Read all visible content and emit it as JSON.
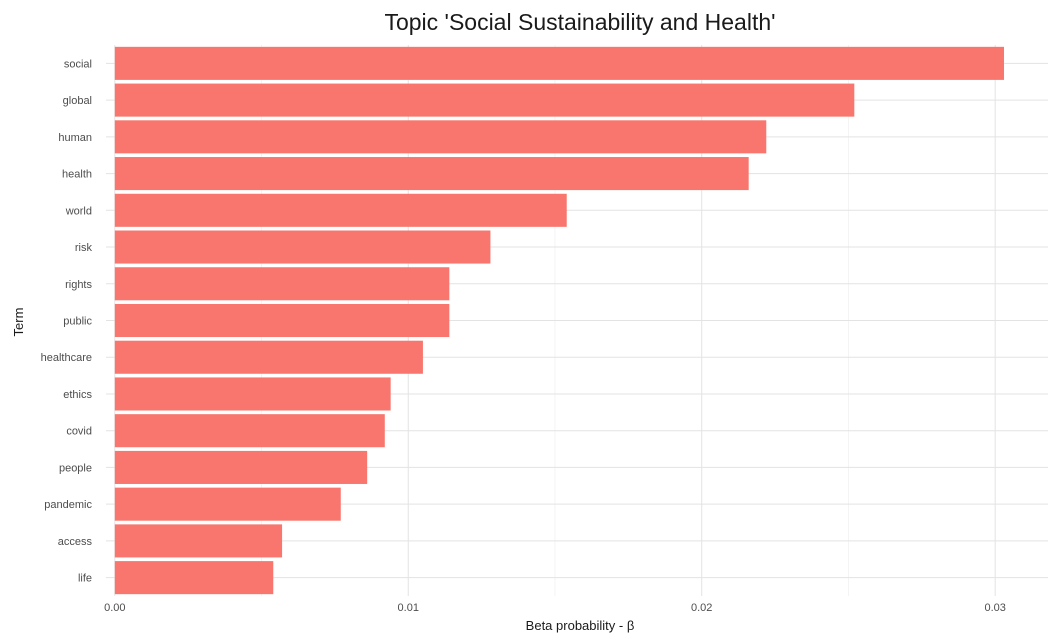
{
  "chart_data": {
    "type": "bar",
    "orientation": "horizontal",
    "title": "Topic 'Social Sustainability and Health'",
    "xlabel": "Beta probability - β",
    "ylabel": "Term",
    "categories": [
      "social",
      "global",
      "human",
      "health",
      "world",
      "risk",
      "rights",
      "public",
      "healthcare",
      "ethics",
      "covid",
      "people",
      "pandemic",
      "access",
      "life"
    ],
    "values": [
      0.0303,
      0.0252,
      0.0222,
      0.0216,
      0.0154,
      0.0128,
      0.0114,
      0.0114,
      0.0105,
      0.0094,
      0.0092,
      0.0086,
      0.0077,
      0.0057,
      0.0054
    ],
    "xlim": [
      -0.0003,
      0.0318
    ],
    "xticks": [
      0,
      0.01,
      0.02,
      0.03
    ],
    "xtick_labels": [
      "0.00",
      "0.01",
      "0.02",
      "0.03"
    ],
    "bar_color": "#F8766D",
    "grid": true,
    "legend": "none"
  }
}
